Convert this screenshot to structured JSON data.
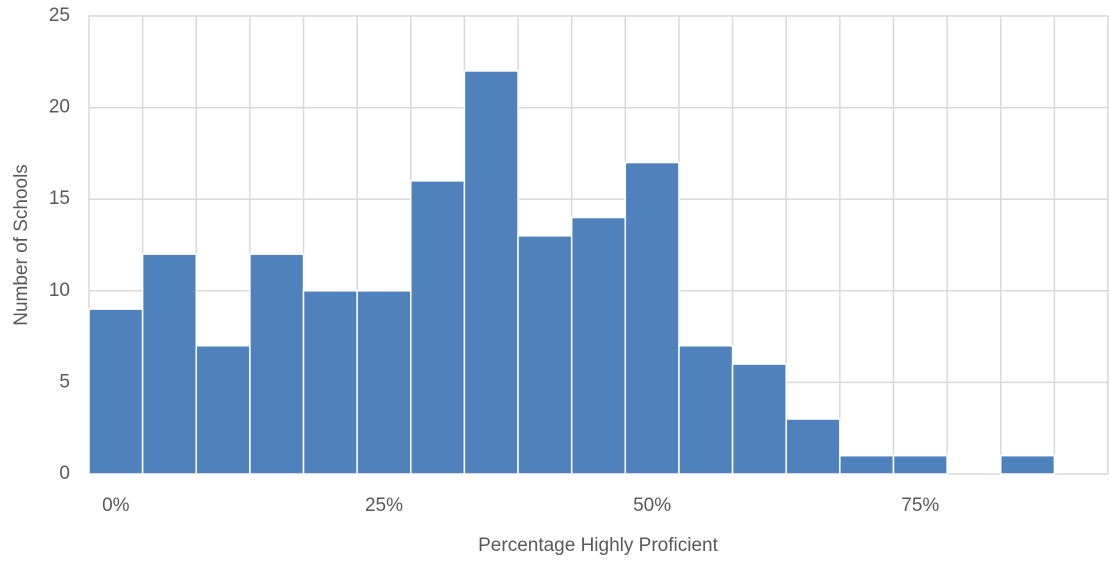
{
  "chart_data": {
    "type": "histogram",
    "x_label": "Percentage Highly Proficient",
    "y_label": "Number of Schools",
    "bins": [
      -2.5,
      2.5,
      7.5,
      12.5,
      17.5,
      22.5,
      27.5,
      32.5,
      37.5,
      42.5,
      47.5,
      52.5,
      57.5,
      62.5,
      67.5,
      72.5,
      77.5,
      82.5,
      87.5
    ],
    "values": [
      9,
      12,
      7,
      12,
      10,
      10,
      16,
      22,
      13,
      14,
      17,
      7,
      6,
      3,
      1,
      1,
      0,
      1
    ],
    "color": "#4f81bd",
    "xlim": [
      -2.5,
      92.5
    ],
    "xticks": [
      {
        "value": 0,
        "label": "0%"
      },
      {
        "value": 25,
        "label": "25%"
      },
      {
        "value": 50,
        "label": "50%"
      },
      {
        "value": 75,
        "label": "75%"
      }
    ],
    "ylim": [
      0,
      25
    ],
    "yticks": [
      0,
      5,
      10,
      15,
      20,
      25
    ],
    "grid": true
  }
}
